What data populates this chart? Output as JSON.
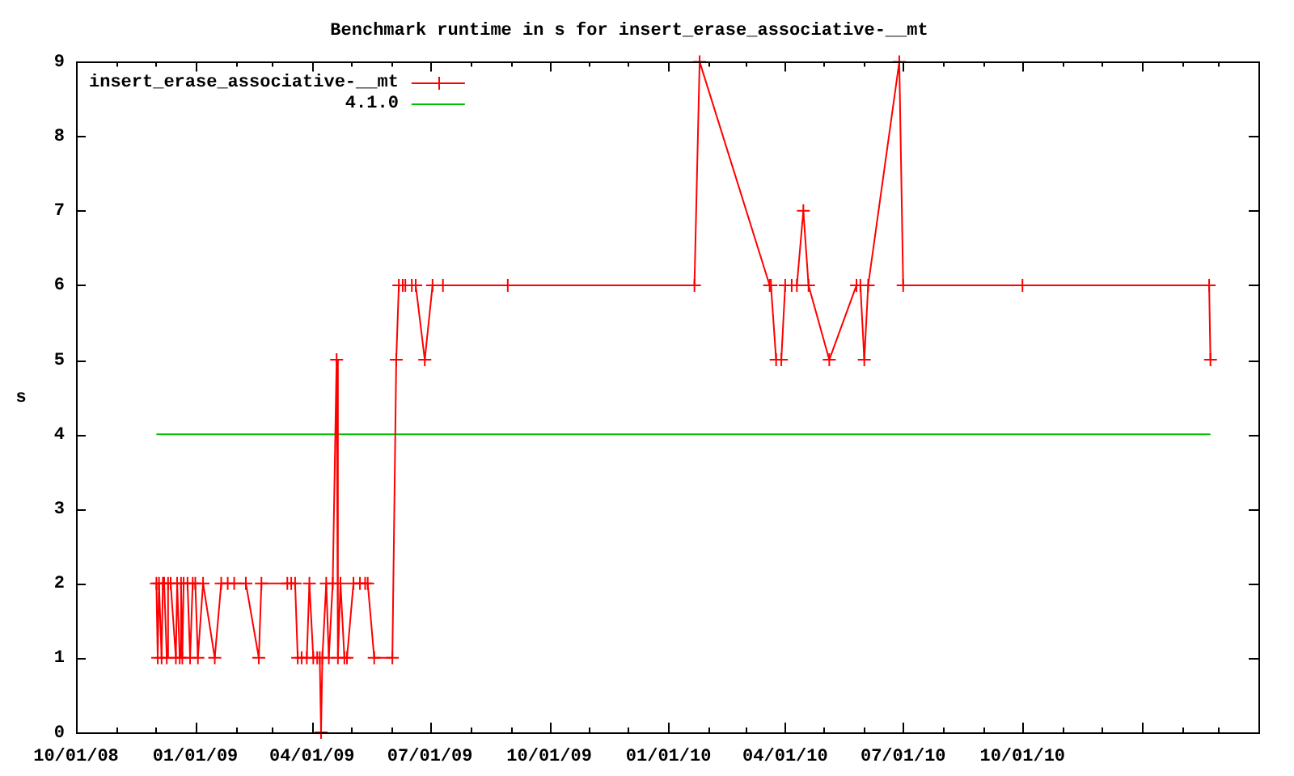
{
  "chart_data": {
    "type": "line",
    "title": "Benchmark runtime in s for insert_erase_associative-__mt",
    "ylabel": "s",
    "xlim": [
      "2008-10-01",
      "2011-04-01"
    ],
    "xticks": [
      {
        "value": "2008-10-01",
        "label": "10/01/08"
      },
      {
        "value": "2008-11-01",
        "label": null
      },
      {
        "value": "2008-12-01",
        "label": null
      },
      {
        "value": "2009-01-01",
        "label": "01/01/09"
      },
      {
        "value": "2009-02-01",
        "label": null
      },
      {
        "value": "2009-03-01",
        "label": null
      },
      {
        "value": "2009-04-01",
        "label": "04/01/09"
      },
      {
        "value": "2009-05-01",
        "label": null
      },
      {
        "value": "2009-06-01",
        "label": null
      },
      {
        "value": "2009-07-01",
        "label": "07/01/09"
      },
      {
        "value": "2009-08-01",
        "label": null
      },
      {
        "value": "2009-09-01",
        "label": null
      },
      {
        "value": "2009-10-01",
        "label": "10/01/09"
      },
      {
        "value": "2009-11-01",
        "label": null
      },
      {
        "value": "2009-12-01",
        "label": null
      },
      {
        "value": "2010-01-01",
        "label": "01/01/10"
      },
      {
        "value": "2010-02-01",
        "label": null
      },
      {
        "value": "2010-03-01",
        "label": null
      },
      {
        "value": "2010-04-01",
        "label": "04/01/10"
      },
      {
        "value": "2010-05-01",
        "label": null
      },
      {
        "value": "2010-06-01",
        "label": null
      },
      {
        "value": "2010-07-01",
        "label": "07/01/10"
      },
      {
        "value": "2010-08-01",
        "label": null
      },
      {
        "value": "2010-09-01",
        "label": null
      },
      {
        "value": "2010-10-01",
        "label": "10/01/10"
      },
      {
        "value": "2010-11-01",
        "label": null
      },
      {
        "value": "2010-12-01",
        "label": null
      },
      {
        "value": "2011-01-01",
        "label": null
      },
      {
        "value": "2011-02-01",
        "label": null
      },
      {
        "value": "2011-03-01",
        "label": null
      },
      {
        "value": "2011-04-01",
        "label": null
      }
    ],
    "ylim": [
      0,
      9
    ],
    "yticks": [
      0,
      1,
      2,
      3,
      4,
      5,
      6,
      7,
      8,
      9
    ],
    "legend": "top left",
    "marker": "cross",
    "series": [
      {
        "name": "insert_erase_associative-__mt",
        "color": "#ff0000",
        "x": [
          "2008-12-02",
          "2008-12-03",
          "2008-12-04",
          "2008-12-06",
          "2008-12-07",
          "2008-12-08",
          "2008-12-10",
          "2008-12-11",
          "2008-12-13",
          "2008-12-17",
          "2008-12-18",
          "2008-12-20",
          "2008-12-21",
          "2008-12-22",
          "2008-12-23",
          "2008-12-26",
          "2008-12-28",
          "2008-12-30",
          "2009-01-01",
          "2009-01-03",
          "2009-01-07",
          "2009-01-16",
          "2009-01-21",
          "2009-01-26",
          "2009-01-31",
          "2009-02-09",
          "2009-02-19",
          "2009-02-21",
          "2009-03-13",
          "2009-03-16",
          "2009-03-19",
          "2009-03-21",
          "2009-03-24",
          "2009-03-28",
          "2009-03-30",
          "2009-04-02",
          "2009-04-05",
          "2009-04-07",
          "2009-04-08",
          "2009-04-09",
          "2009-04-12",
          "2009-04-14",
          "2009-04-17",
          "2009-04-20",
          "2009-04-21",
          "2009-04-23",
          "2009-04-26",
          "2009-04-28",
          "2009-05-03",
          "2009-05-08",
          "2009-05-12",
          "2009-05-14",
          "2009-05-19",
          "2009-06-02",
          "2009-06-05",
          "2009-06-07",
          "2009-06-10",
          "2009-06-12",
          "2009-06-17",
          "2009-06-20",
          "2009-06-27",
          "2009-07-03",
          "2009-07-11",
          "2009-08-30",
          "2010-01-21",
          "2010-01-25",
          "2010-03-20",
          "2010-03-21",
          "2010-03-25",
          "2010-03-29",
          "2010-04-01",
          "2010-04-06",
          "2010-04-10",
          "2010-04-15",
          "2010-04-19",
          "2010-05-05",
          "2010-05-26",
          "2010-05-29",
          "2010-06-01",
          "2010-06-04",
          "2010-06-28",
          "2010-07-01",
          "2010-10-01",
          "2011-02-22",
          "2011-02-23"
        ],
        "values": [
          2,
          1,
          2,
          1,
          2,
          2,
          1,
          2,
          2,
          1,
          2,
          1,
          2,
          1,
          2,
          2,
          1,
          2,
          2,
          1,
          2,
          1,
          2,
          2,
          2,
          2,
          1,
          2,
          2,
          2,
          2,
          1,
          1,
          1,
          2,
          1,
          1,
          1,
          0,
          1,
          2,
          1,
          2,
          5,
          1,
          2,
          1,
          1,
          2,
          2,
          2,
          2,
          1,
          1,
          5,
          6,
          6,
          6,
          6,
          6,
          5,
          6,
          6,
          6,
          6,
          9,
          6,
          6,
          5,
          5,
          6,
          6,
          6,
          7,
          6,
          5,
          6,
          6,
          5,
          6,
          9,
          6,
          6,
          6,
          5
        ]
      },
      {
        "name": "4.1.0",
        "color": "#00c000",
        "marker": "none",
        "x": [
          "2008-12-02",
          "2011-02-23"
        ],
        "values": [
          4,
          4
        ]
      }
    ]
  }
}
